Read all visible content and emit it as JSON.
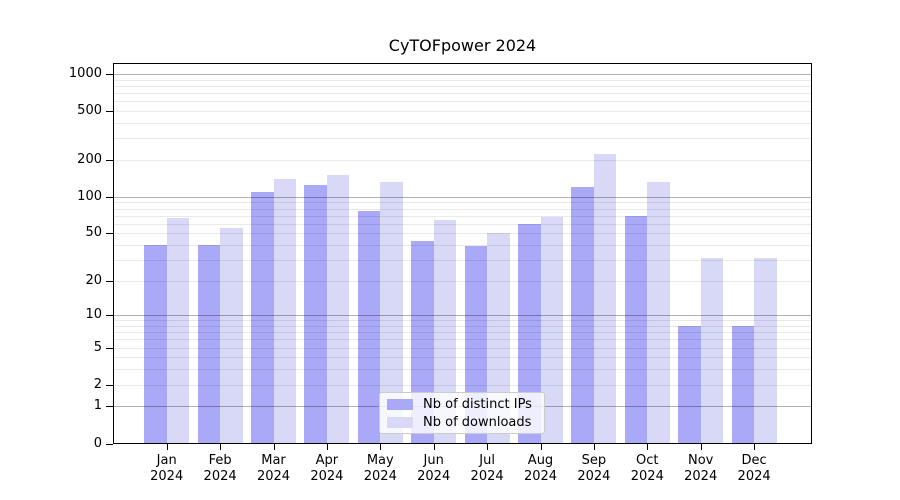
{
  "chart_data": {
    "type": "bar",
    "title": "CyTOFpower 2024",
    "categories": [
      "Jan 2024",
      "Feb 2024",
      "Mar 2024",
      "Apr 2024",
      "May 2024",
      "Jun 2024",
      "Jul 2024",
      "Aug 2024",
      "Sep 2024",
      "Oct 2024",
      "Nov 2024",
      "Dec 2024"
    ],
    "x_tick_months": [
      "Jan",
      "Feb",
      "Mar",
      "Apr",
      "May",
      "Jun",
      "Jul",
      "Aug",
      "Sep",
      "Oct",
      "Nov",
      "Dec"
    ],
    "x_tick_year": "2024",
    "series": [
      {
        "name": "Nb of distinct IPs",
        "color": "#a9a9f7",
        "values": [
          40,
          40,
          110,
          125,
          77,
          43,
          39,
          60,
          120,
          70,
          8,
          8
        ]
      },
      {
        "name": "Nb of downloads",
        "color": "#d8d8f7",
        "values": [
          67,
          55,
          141,
          152,
          133,
          65,
          50,
          68,
          225,
          133,
          31,
          31
        ]
      }
    ],
    "yscale": "log1p",
    "ylim": [
      0,
      1244
    ],
    "y_ticks": [
      0,
      1,
      2,
      5,
      10,
      20,
      50,
      100,
      200,
      500,
      1000
    ],
    "grid": {
      "major_lines": [
        1,
        10,
        100,
        1000
      ],
      "minor_lines_per_decade": [
        2,
        3,
        4,
        5,
        6,
        7,
        8,
        9
      ],
      "grid_on": true
    },
    "legend": {
      "position": "lower center"
    },
    "xlabel": "",
    "ylabel": ""
  }
}
